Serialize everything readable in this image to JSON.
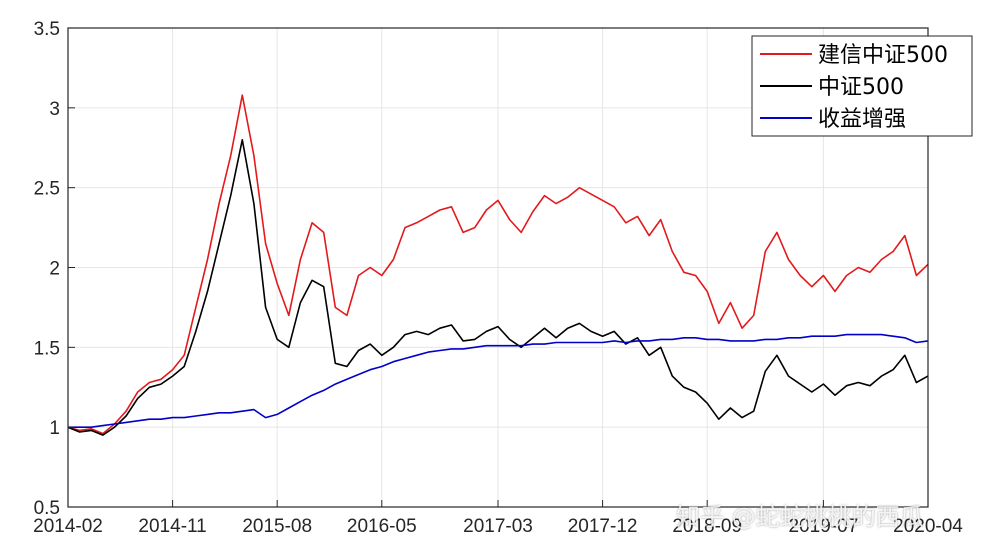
{
  "watermark": "知乎 @蛇蛇桃桃的西瓜",
  "chart_data": {
    "type": "line",
    "title": "",
    "xlabel": "",
    "ylabel": "",
    "ylim": [
      0.5,
      3.5
    ],
    "yticks": [
      0.5,
      1,
      1.5,
      2,
      2.5,
      3,
      3.5
    ],
    "ytick_labels": [
      "0.5",
      "1",
      "1.5",
      "2",
      "2.5",
      "3",
      "3.5"
    ],
    "xlim": [
      "2014-02",
      "2020-04"
    ],
    "xticks": [
      "2014-02",
      "2014-11",
      "2015-08",
      "2016-05",
      "2017-03",
      "2017-12",
      "2018-09",
      "2019-07",
      "2020-04"
    ],
    "grid": true,
    "legend": {
      "placement": "top-right",
      "entries": [
        "建信中证500",
        "中证500",
        "收益增强"
      ]
    },
    "series": [
      {
        "name": "建信中证500",
        "color": "#e31a1c",
        "x": [
          "2014-02",
          "2014-03",
          "2014-04",
          "2014-05",
          "2014-06",
          "2014-07",
          "2014-08",
          "2014-09",
          "2014-10",
          "2014-11",
          "2014-12",
          "2015-01",
          "2015-02",
          "2015-03",
          "2015-04",
          "2015-05",
          "2015-06",
          "2015-07",
          "2015-08",
          "2015-09",
          "2015-10",
          "2015-11",
          "2015-12",
          "2016-01",
          "2016-02",
          "2016-03",
          "2016-04",
          "2016-05",
          "2016-06",
          "2016-07",
          "2016-08",
          "2016-09",
          "2016-10",
          "2016-11",
          "2016-12",
          "2017-01",
          "2017-02",
          "2017-03",
          "2017-04",
          "2017-05",
          "2017-06",
          "2017-07",
          "2017-08",
          "2017-09",
          "2017-10",
          "2017-11",
          "2017-12",
          "2018-01",
          "2018-02",
          "2018-03",
          "2018-04",
          "2018-05",
          "2018-06",
          "2018-07",
          "2018-08",
          "2018-09",
          "2018-10",
          "2018-11",
          "2018-12",
          "2019-01",
          "2019-02",
          "2019-03",
          "2019-04",
          "2019-05",
          "2019-06",
          "2019-07",
          "2019-08",
          "2019-09",
          "2019-10",
          "2019-11",
          "2019-12",
          "2020-01",
          "2020-02",
          "2020-03",
          "2020-04"
        ],
        "values": [
          1.0,
          0.98,
          0.99,
          0.96,
          1.02,
          1.1,
          1.22,
          1.28,
          1.3,
          1.36,
          1.45,
          1.75,
          2.05,
          2.4,
          2.7,
          3.08,
          2.7,
          2.15,
          1.9,
          1.7,
          2.05,
          2.28,
          2.22,
          1.75,
          1.7,
          1.95,
          2.0,
          1.95,
          2.05,
          2.25,
          2.28,
          2.32,
          2.36,
          2.38,
          2.22,
          2.25,
          2.36,
          2.42,
          2.3,
          2.22,
          2.35,
          2.45,
          2.4,
          2.44,
          2.5,
          2.46,
          2.42,
          2.38,
          2.28,
          2.32,
          2.2,
          2.3,
          2.1,
          1.97,
          1.95,
          1.85,
          1.65,
          1.78,
          1.62,
          1.7,
          2.1,
          2.22,
          2.05,
          1.95,
          1.88,
          1.95,
          1.85,
          1.95,
          2.0,
          1.97,
          2.05,
          2.1,
          2.2,
          1.95,
          2.02
        ]
      },
      {
        "name": "中证500",
        "color": "#000000",
        "x": [
          "2014-02",
          "2014-03",
          "2014-04",
          "2014-05",
          "2014-06",
          "2014-07",
          "2014-08",
          "2014-09",
          "2014-10",
          "2014-11",
          "2014-12",
          "2015-01",
          "2015-02",
          "2015-03",
          "2015-04",
          "2015-05",
          "2015-06",
          "2015-07",
          "2015-08",
          "2015-09",
          "2015-10",
          "2015-11",
          "2015-12",
          "2016-01",
          "2016-02",
          "2016-03",
          "2016-04",
          "2016-05",
          "2016-06",
          "2016-07",
          "2016-08",
          "2016-09",
          "2016-10",
          "2016-11",
          "2016-12",
          "2017-01",
          "2017-02",
          "2017-03",
          "2017-04",
          "2017-05",
          "2017-06",
          "2017-07",
          "2017-08",
          "2017-09",
          "2017-10",
          "2017-11",
          "2017-12",
          "2018-01",
          "2018-02",
          "2018-03",
          "2018-04",
          "2018-05",
          "2018-06",
          "2018-07",
          "2018-08",
          "2018-09",
          "2018-10",
          "2018-11",
          "2018-12",
          "2019-01",
          "2019-02",
          "2019-03",
          "2019-04",
          "2019-05",
          "2019-06",
          "2019-07",
          "2019-08",
          "2019-09",
          "2019-10",
          "2019-11",
          "2019-12",
          "2020-01",
          "2020-02",
          "2020-03",
          "2020-04"
        ],
        "values": [
          1.0,
          0.97,
          0.98,
          0.95,
          1.0,
          1.07,
          1.18,
          1.25,
          1.27,
          1.32,
          1.38,
          1.6,
          1.85,
          2.15,
          2.45,
          2.8,
          2.4,
          1.75,
          1.55,
          1.5,
          1.78,
          1.92,
          1.88,
          1.4,
          1.38,
          1.48,
          1.52,
          1.45,
          1.5,
          1.58,
          1.6,
          1.58,
          1.62,
          1.64,
          1.54,
          1.55,
          1.6,
          1.63,
          1.55,
          1.5,
          1.56,
          1.62,
          1.56,
          1.62,
          1.65,
          1.6,
          1.57,
          1.6,
          1.52,
          1.56,
          1.45,
          1.5,
          1.32,
          1.25,
          1.22,
          1.15,
          1.05,
          1.12,
          1.06,
          1.1,
          1.35,
          1.45,
          1.32,
          1.27,
          1.22,
          1.27,
          1.2,
          1.26,
          1.28,
          1.26,
          1.32,
          1.36,
          1.45,
          1.28,
          1.32
        ]
      },
      {
        "name": "收益增强",
        "color": "#0000c8",
        "x": [
          "2014-02",
          "2014-03",
          "2014-04",
          "2014-05",
          "2014-06",
          "2014-07",
          "2014-08",
          "2014-09",
          "2014-10",
          "2014-11",
          "2014-12",
          "2015-01",
          "2015-02",
          "2015-03",
          "2015-04",
          "2015-05",
          "2015-06",
          "2015-07",
          "2015-08",
          "2015-09",
          "2015-10",
          "2015-11",
          "2015-12",
          "2016-01",
          "2016-02",
          "2016-03",
          "2016-04",
          "2016-05",
          "2016-06",
          "2016-07",
          "2016-08",
          "2016-09",
          "2016-10",
          "2016-11",
          "2016-12",
          "2017-01",
          "2017-02",
          "2017-03",
          "2017-04",
          "2017-05",
          "2017-06",
          "2017-07",
          "2017-08",
          "2017-09",
          "2017-10",
          "2017-11",
          "2017-12",
          "2018-01",
          "2018-02",
          "2018-03",
          "2018-04",
          "2018-05",
          "2018-06",
          "2018-07",
          "2018-08",
          "2018-09",
          "2018-10",
          "2018-11",
          "2018-12",
          "2019-01",
          "2019-02",
          "2019-03",
          "2019-04",
          "2019-05",
          "2019-06",
          "2019-07",
          "2019-08",
          "2019-09",
          "2019-10",
          "2019-11",
          "2019-12",
          "2020-01",
          "2020-02",
          "2020-03",
          "2020-04"
        ],
        "values": [
          1.0,
          1.0,
          1.0,
          1.01,
          1.02,
          1.03,
          1.04,
          1.05,
          1.05,
          1.06,
          1.06,
          1.07,
          1.08,
          1.09,
          1.09,
          1.1,
          1.11,
          1.06,
          1.08,
          1.12,
          1.16,
          1.2,
          1.23,
          1.27,
          1.3,
          1.33,
          1.36,
          1.38,
          1.41,
          1.43,
          1.45,
          1.47,
          1.48,
          1.49,
          1.49,
          1.5,
          1.51,
          1.51,
          1.51,
          1.51,
          1.52,
          1.52,
          1.53,
          1.53,
          1.53,
          1.53,
          1.53,
          1.54,
          1.53,
          1.54,
          1.54,
          1.55,
          1.55,
          1.56,
          1.56,
          1.55,
          1.55,
          1.54,
          1.54,
          1.54,
          1.55,
          1.55,
          1.56,
          1.56,
          1.57,
          1.57,
          1.57,
          1.58,
          1.58,
          1.58,
          1.58,
          1.57,
          1.56,
          1.53,
          1.54
        ]
      }
    ]
  }
}
